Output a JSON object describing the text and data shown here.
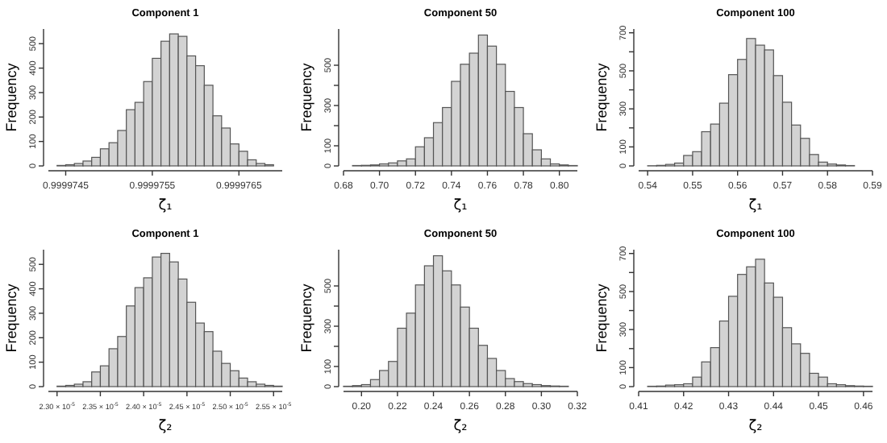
{
  "chart_data": [
    {
      "type": "histogram",
      "title": "Component 1",
      "xlabel": "ζ₁",
      "ylabel": "Frequency",
      "color": "#d3d3d3",
      "bins": [
        0.9999744,
        0.9999745,
        0.9999746,
        0.9999747,
        0.9999748,
        0.9999749,
        0.999975,
        0.9999751,
        0.9999752,
        0.9999753,
        0.9999754,
        0.9999755,
        0.9999756,
        0.9999757,
        0.9999758,
        0.9999759,
        0.999976,
        0.9999761,
        0.9999762,
        0.9999763,
        0.9999764,
        0.9999765,
        0.9999766,
        0.9999767,
        0.9999768,
        0.9999769
      ],
      "values": [
        2,
        5,
        10,
        20,
        35,
        70,
        95,
        145,
        230,
        260,
        345,
        440,
        510,
        540,
        530,
        450,
        410,
        330,
        205,
        155,
        90,
        60,
        25,
        10,
        5
      ],
      "xlim": [
        0.9999743,
        0.999977
      ],
      "xticks": [
        0.9999745,
        0.9999755,
        0.9999765
      ],
      "ylim": [
        0,
        560
      ],
      "yticks": [
        0,
        100,
        200,
        300,
        400,
        500
      ]
    },
    {
      "type": "histogram",
      "title": "Component 50",
      "xlabel": "ζ₁",
      "ylabel": "Frequency",
      "color": "#d3d3d3",
      "bins": [
        0.685,
        0.69,
        0.695,
        0.7,
        0.705,
        0.71,
        0.715,
        0.72,
        0.725,
        0.73,
        0.735,
        0.74,
        0.745,
        0.75,
        0.755,
        0.76,
        0.765,
        0.77,
        0.775,
        0.78,
        0.785,
        0.79,
        0.795,
        0.8,
        0.805,
        0.81
      ],
      "values": [
        2,
        3,
        5,
        10,
        15,
        25,
        35,
        95,
        140,
        215,
        290,
        420,
        505,
        560,
        650,
        595,
        505,
        370,
        290,
        160,
        80,
        35,
        10,
        5,
        2
      ],
      "xlim": [
        0.68,
        0.81
      ],
      "xticks": [
        0.68,
        {
          "value": 0.7,
          "label": "0.70"
        },
        0.72,
        0.74,
        0.76,
        0.78,
        {
          "value": 0.8,
          "label": "0.80"
        }
      ],
      "ylim": [
        0,
        680
      ],
      "yticks": [
        0,
        100,
        {
          "value": 200,
          "label": null
        },
        300,
        {
          "value": 400,
          "label": null
        },
        500
      ]
    },
    {
      "type": "histogram",
      "title": "Component 100",
      "xlabel": "ζ₁",
      "ylabel": "Frequency",
      "color": "#d3d3d3",
      "bins": [
        0.54,
        0.542,
        0.544,
        0.546,
        0.548,
        0.55,
        0.552,
        0.554,
        0.556,
        0.558,
        0.56,
        0.562,
        0.564,
        0.566,
        0.568,
        0.57,
        0.572,
        0.574,
        0.576,
        0.578,
        0.58,
        0.582,
        0.584,
        0.586
      ],
      "values": [
        1,
        3,
        8,
        15,
        55,
        75,
        180,
        220,
        330,
        480,
        560,
        670,
        635,
        610,
        475,
        335,
        215,
        145,
        60,
        20,
        10,
        5,
        2
      ],
      "xlim": [
        0.538,
        0.59
      ],
      "xticks": [
        0.54,
        0.55,
        0.56,
        0.57,
        0.58,
        0.59
      ],
      "ylim": [
        0,
        720
      ],
      "yticks": [
        0,
        100,
        {
          "value": 200,
          "label": null
        },
        300,
        {
          "value": 400,
          "label": null
        },
        500,
        {
          "value": 600,
          "label": null
        },
        700
      ]
    },
    {
      "type": "histogram",
      "title": "Component 1",
      "xlabel": "ζ₂",
      "ylabel": "Frequency",
      "color": "#d3d3d3",
      "bins": [
        2.3e-05,
        2.31e-05,
        2.32e-05,
        2.33e-05,
        2.34e-05,
        2.35e-05,
        2.36e-05,
        2.37e-05,
        2.38e-05,
        2.39e-05,
        2.4e-05,
        2.41e-05,
        2.42e-05,
        2.43e-05,
        2.44e-05,
        2.45e-05,
        2.46e-05,
        2.47e-05,
        2.48e-05,
        2.49e-05,
        2.5e-05,
        2.51e-05,
        2.52e-05,
        2.53e-05,
        2.54e-05,
        2.55e-05,
        2.56e-05
      ],
      "values": [
        2,
        5,
        10,
        20,
        60,
        85,
        155,
        205,
        330,
        405,
        445,
        530,
        545,
        510,
        440,
        345,
        260,
        225,
        145,
        95,
        65,
        35,
        20,
        10,
        5,
        2
      ],
      "xlim": [
        2.29e-05,
        2.56e-05
      ],
      "xticks": [
        {
          "value": 2.3e-05,
          "label": "2.30 × 10$^{-5}$"
        },
        {
          "value": 2.35e-05,
          "label": "2.35 × 10$^{-5}$"
        },
        {
          "value": 2.4e-05,
          "label": "2.40 × 10$^{-5}$"
        },
        {
          "value": 2.45e-05,
          "label": "2.45 × 10$^{-5}$"
        },
        {
          "value": 2.5e-05,
          "label": "2.50 × 10$^{-5}$"
        },
        {
          "value": 2.55e-05,
          "label": "2.55 × 10$^{-5}$"
        }
      ],
      "ylim": [
        0,
        560
      ],
      "yticks": [
        0,
        100,
        200,
        300,
        400,
        500
      ]
    },
    {
      "type": "histogram",
      "title": "Component 50",
      "xlabel": "ζ₂",
      "ylabel": "Frequency",
      "color": "#d3d3d3",
      "bins": [
        0.19,
        0.195,
        0.2,
        0.205,
        0.21,
        0.215,
        0.22,
        0.225,
        0.23,
        0.235,
        0.24,
        0.245,
        0.25,
        0.255,
        0.26,
        0.265,
        0.27,
        0.275,
        0.28,
        0.285,
        0.29,
        0.295,
        0.3,
        0.305,
        0.31,
        0.315
      ],
      "values": [
        2,
        5,
        10,
        35,
        80,
        125,
        290,
        365,
        505,
        600,
        650,
        575,
        505,
        395,
        290,
        205,
        140,
        80,
        40,
        25,
        15,
        10,
        5,
        3,
        2
      ],
      "xlim": [
        0.19,
        0.32
      ],
      "xticks": [
        {
          "value": 0.2,
          "label": "0.20"
        },
        0.22,
        0.24,
        0.26,
        0.28,
        {
          "value": 0.3,
          "label": "0.30"
        },
        0.32
      ],
      "ylim": [
        0,
        680
      ],
      "yticks": [
        0,
        100,
        {
          "value": 200,
          "label": null
        },
        300,
        {
          "value": 400,
          "label": null
        },
        500
      ]
    },
    {
      "type": "histogram",
      "title": "Component 100",
      "xlabel": "ζ₂",
      "ylabel": "Frequency",
      "color": "#d3d3d3",
      "bins": [
        0.412,
        0.414,
        0.416,
        0.418,
        0.42,
        0.422,
        0.424,
        0.426,
        0.428,
        0.43,
        0.432,
        0.434,
        0.436,
        0.438,
        0.44,
        0.442,
        0.444,
        0.446,
        0.448,
        0.45,
        0.452,
        0.454,
        0.456,
        0.458,
        0.46,
        0.462
      ],
      "values": [
        2,
        3,
        8,
        10,
        15,
        50,
        130,
        205,
        345,
        475,
        590,
        630,
        670,
        545,
        470,
        310,
        225,
        175,
        70,
        50,
        15,
        10,
        5,
        3,
        2
      ],
      "xlim": [
        0.41,
        0.462
      ],
      "xticks": [
        0.41,
        0.42,
        0.43,
        0.44,
        0.45,
        0.46
      ],
      "ylim": [
        0,
        720
      ],
      "yticks": [
        0,
        100,
        {
          "value": 200,
          "label": null
        },
        300,
        {
          "value": 400,
          "label": null
        },
        500,
        {
          "value": 600,
          "label": null
        },
        700
      ]
    }
  ]
}
